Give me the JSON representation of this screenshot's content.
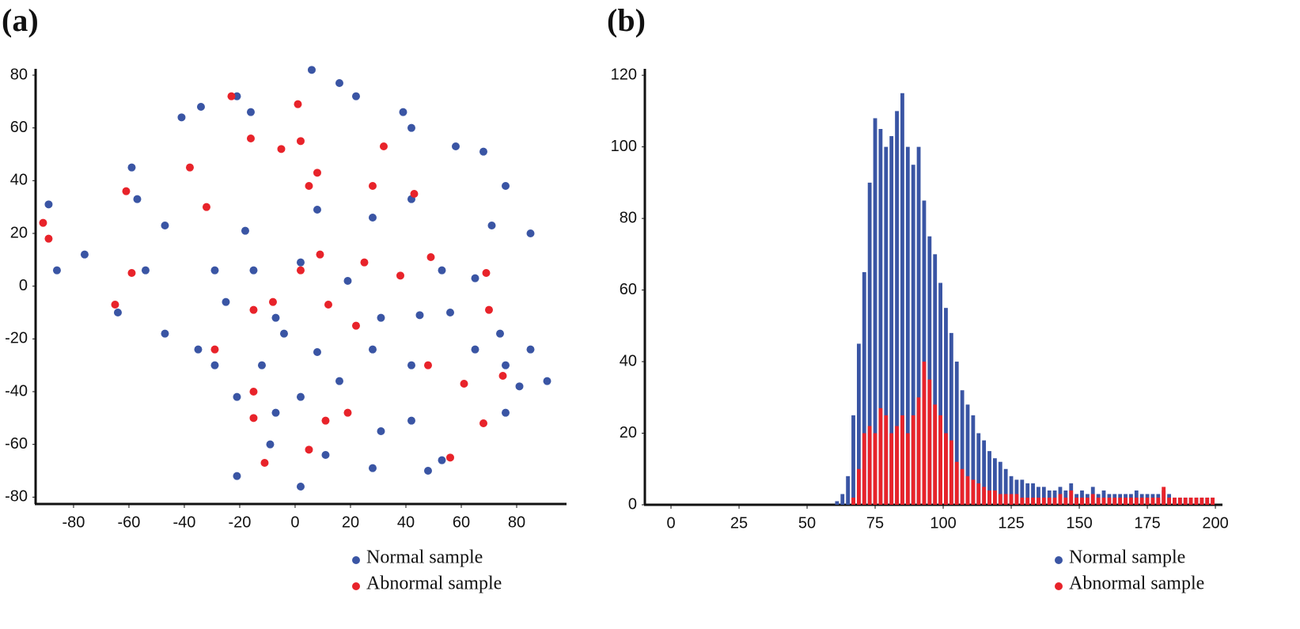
{
  "chart_data": [
    {
      "type": "scatter",
      "panel": "(a)",
      "xlim": [
        -93.7,
        98
      ],
      "ylim": [
        -82.6,
        82.4
      ],
      "xticks": [
        -80,
        -60,
        -40,
        -20,
        0,
        20,
        40,
        60,
        80
      ],
      "yticks": [
        -80,
        -60,
        -40,
        -20,
        0,
        20,
        40,
        60,
        80
      ],
      "series": [
        {
          "name": "Normal sample",
          "color": "#3a55a4",
          "x": [
            -89,
            -86,
            -76,
            -64,
            -54,
            -47,
            -41,
            -34,
            -59,
            -57,
            -29,
            -25,
            -18,
            -21,
            -16,
            6,
            16,
            22,
            39,
            42,
            58,
            76,
            68,
            28,
            42,
            8,
            71,
            85,
            2,
            19,
            53,
            65,
            31,
            45,
            56,
            74,
            85,
            91,
            76,
            65,
            28,
            42,
            16,
            2,
            -12,
            -29,
            -35,
            -21,
            -7,
            31,
            42,
            28,
            48,
            53,
            -21,
            2,
            -9,
            11,
            76,
            81,
            -7,
            8,
            -4,
            -47,
            -15
          ],
          "values": [
            31,
            6,
            12,
            -10,
            6,
            23,
            64,
            68,
            45,
            33,
            6,
            -6,
            21,
            72,
            66,
            82,
            77,
            72,
            66,
            60,
            53,
            38,
            51,
            26,
            33,
            29,
            23,
            20,
            9,
            2,
            6,
            3,
            -12,
            -11,
            -10,
            -18,
            -24,
            -36,
            -30,
            -24,
            -24,
            -30,
            -36,
            -42,
            -30,
            -30,
            -24,
            -42,
            -48,
            -55,
            -51,
            -69,
            -70,
            -66,
            -72,
            -76,
            -60,
            -64,
            -48,
            -38,
            -12,
            -25,
            -18,
            -18,
            6
          ]
        },
        {
          "name": "Abnormal sample",
          "color": "#e8232a",
          "x": [
            -91,
            -89,
            -61,
            -59,
            -65,
            -38,
            -32,
            -23,
            -16,
            -5,
            2,
            5,
            8,
            1,
            28,
            32,
            43,
            49,
            25,
            38,
            69,
            -15,
            -8,
            2,
            9,
            -29,
            22,
            12,
            -15,
            -15,
            11,
            19,
            5,
            -11,
            48,
            61,
            68,
            75,
            56,
            70
          ],
          "values": [
            24,
            18,
            36,
            5,
            -7,
            45,
            30,
            72,
            56,
            52,
            55,
            38,
            43,
            69,
            38,
            53,
            35,
            11,
            9,
            4,
            5,
            -9,
            -6,
            6,
            12,
            -24,
            -15,
            -7,
            -40,
            -50,
            -51,
            -48,
            -62,
            -67,
            -30,
            -37,
            -52,
            -34,
            -65,
            -9
          ]
        }
      ]
    },
    {
      "type": "histogram",
      "panel": "(b)",
      "xlim": [
        -9.6,
        202.6
      ],
      "ylim": [
        0,
        121.8
      ],
      "xticks": [
        0,
        25,
        50,
        75,
        100,
        125,
        150,
        175,
        200
      ],
      "yticks": [
        0,
        20,
        40,
        60,
        80,
        100,
        120
      ],
      "bins": [
        60,
        62,
        64,
        66,
        68,
        70,
        72,
        74,
        76,
        78,
        80,
        82,
        84,
        86,
        88,
        90,
        92,
        94,
        96,
        98,
        100,
        102,
        104,
        106,
        108,
        110,
        112,
        114,
        116,
        118,
        120,
        122,
        124,
        126,
        128,
        130,
        132,
        134,
        136,
        138,
        140,
        142,
        144,
        146,
        148,
        150,
        152,
        154,
        156,
        158,
        160,
        162,
        164,
        166,
        168,
        170,
        172,
        174,
        176,
        178,
        180,
        182,
        184,
        186,
        188,
        190,
        192,
        194,
        196,
        198,
        200
      ],
      "series": [
        {
          "name": "Normal sample",
          "color": "#3a55a4",
          "values": [
            1,
            3,
            8,
            25,
            45,
            65,
            90,
            108,
            105,
            100,
            103,
            110,
            115,
            100,
            95,
            100,
            85,
            75,
            70,
            62,
            55,
            48,
            40,
            32,
            28,
            25,
            20,
            18,
            15,
            13,
            12,
            10,
            8,
            7,
            7,
            6,
            6,
            5,
            5,
            4,
            4,
            5,
            4,
            6,
            3,
            4,
            3,
            5,
            3,
            4,
            3,
            3,
            3,
            3,
            3,
            4,
            3,
            3,
            3,
            3,
            4,
            3,
            2,
            2,
            2,
            2,
            2,
            2,
            2,
            2
          ]
        },
        {
          "name": "Abnormal sample",
          "color": "#e8232a",
          "values": [
            0,
            0,
            0,
            2,
            10,
            20,
            22,
            20,
            27,
            25,
            20,
            22,
            25,
            20,
            25,
            30,
            40,
            35,
            28,
            25,
            20,
            18,
            12,
            10,
            8,
            7,
            6,
            5,
            4,
            4,
            3,
            3,
            3,
            3,
            2,
            2,
            2,
            2,
            2,
            2,
            2,
            3,
            2,
            4,
            2,
            2,
            2,
            3,
            2,
            2,
            2,
            2,
            2,
            2,
            2,
            2,
            2,
            2,
            2,
            2,
            5,
            2,
            2,
            2,
            2,
            2,
            2,
            2,
            2,
            2
          ]
        }
      ]
    }
  ]
}
